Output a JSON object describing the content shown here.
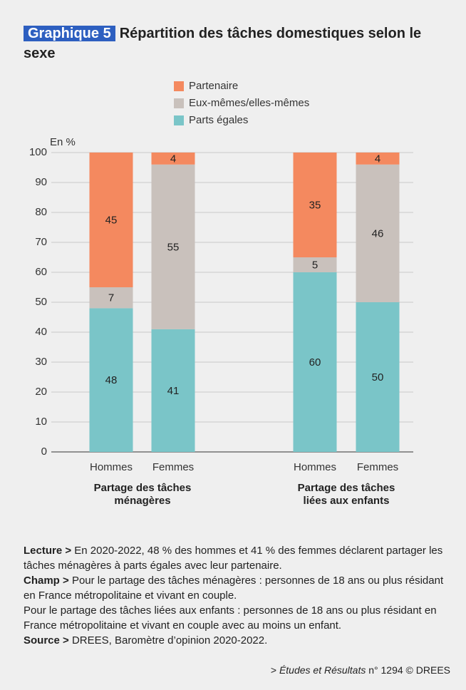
{
  "chart_data": {
    "type": "stacked_bar",
    "badge": "Graphique 5",
    "title": "Répartition des tâches domestiques selon le sexe",
    "y_axis_label": "En %",
    "categories": [
      "Hommes",
      "Femmes",
      "Hommes",
      "Femmes"
    ],
    "groups": [
      "Partage des tâches ménagères",
      "Partage des tâches liées aux enfants"
    ],
    "series": [
      {
        "name": "Parts égales",
        "color": "#7ac5c8",
        "values": [
          48,
          41,
          60,
          50
        ]
      },
      {
        "name": "Eux-mêmes/elles-mêmes",
        "color": "#c9c1bc",
        "values": [
          7,
          55,
          5,
          46
        ]
      },
      {
        "name": "Partenaire",
        "color": "#f4895f",
        "values": [
          45,
          4,
          35,
          4
        ]
      }
    ],
    "ylim": [
      0,
      100
    ],
    "yticks": [
      0,
      10,
      20,
      30,
      40,
      50,
      60,
      70,
      80,
      90,
      100
    ],
    "grid": true
  },
  "notes": {
    "lecture": {
      "label": "Lecture >",
      "text": "En 2020-2022, 48 % des hommes et 41 % des femmes déclarent partager les tâches ménagères à parts égales avec leur partenaire."
    },
    "champ": {
      "label": "Champ >",
      "texts": [
        "Pour le partage des tâches ménagères : personnes de 18 ans ou plus résidant en France métropolitaine et vivant en couple.",
        "Pour le partage des tâches liées aux enfants : personnes de 18 ans ou plus résidant en France métropolitaine et vivant en couple avec au moins un enfant."
      ]
    },
    "source": {
      "label": "Source >",
      "text": "DREES, Baromètre d’opinion 2020-2022."
    },
    "footer": {
      "prefix": ">",
      "publication": "Études et Résultats",
      "suffix": "n° 1294 © DREES"
    }
  }
}
